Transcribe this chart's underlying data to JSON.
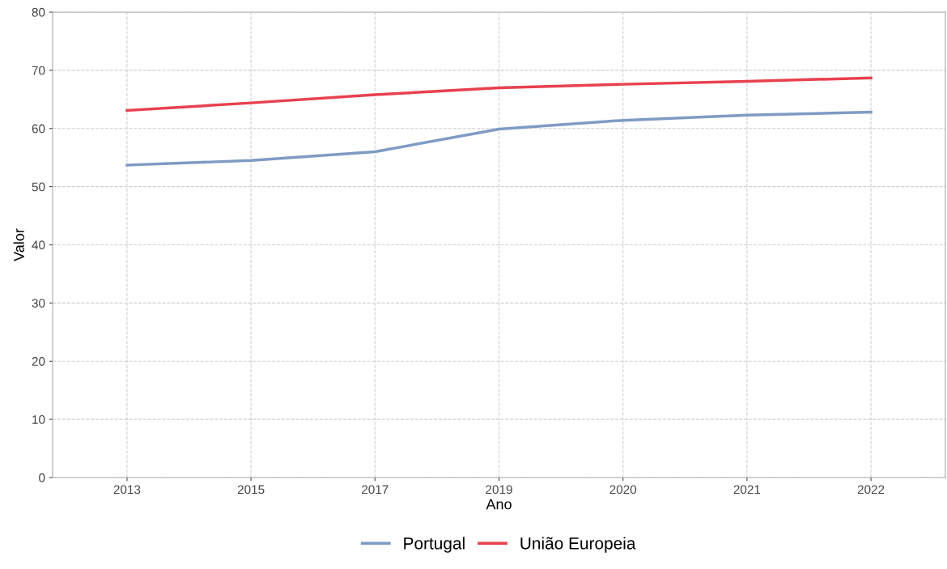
{
  "chart_data": {
    "type": "line",
    "xlabel": "Ano",
    "ylabel": "Valor",
    "categories": [
      "2013",
      "2015",
      "2017",
      "2019",
      "2020",
      "2021",
      "2022"
    ],
    "series": [
      {
        "name": "Portugal",
        "color": "#7f9bc4",
        "values": [
          53.7,
          54.5,
          56.0,
          59.9,
          61.4,
          62.3,
          62.8
        ]
      },
      {
        "name": "União Europeia",
        "color": "#e8414f",
        "values": [
          63.1,
          64.4,
          65.8,
          67.0,
          67.6,
          68.1,
          68.7
        ]
      }
    ],
    "ylim": [
      0,
      80
    ],
    "yticks": [
      0,
      10,
      20,
      30,
      40,
      50,
      60,
      70,
      80
    ],
    "grid": true,
    "legend": "bottom",
    "marker": "none",
    "line_style": "solid"
  }
}
